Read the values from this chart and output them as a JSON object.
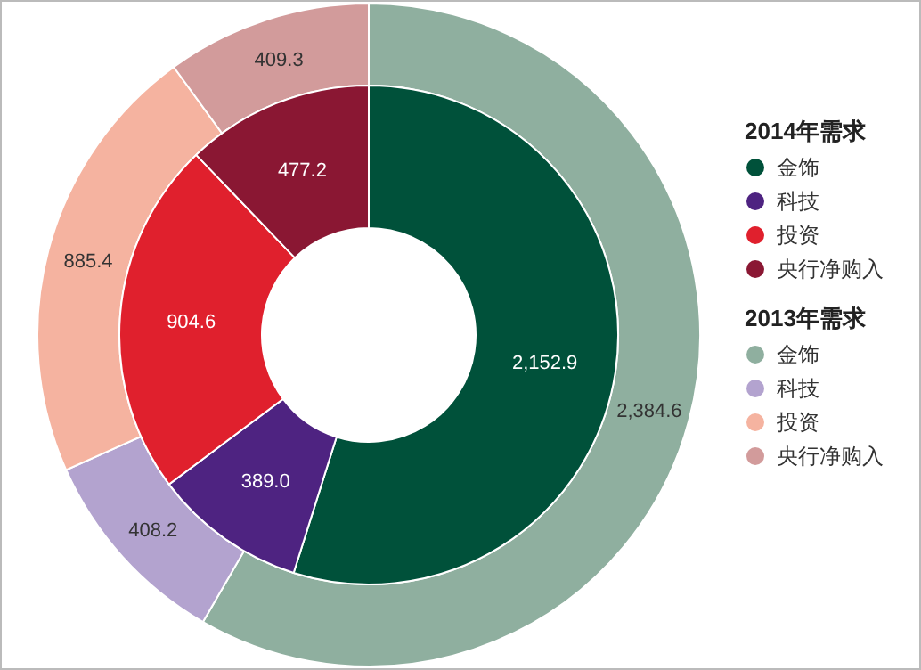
{
  "chart_data": [
    {
      "type": "donut",
      "legend_title": "2014年需求",
      "legend": "right",
      "categories": [
        "金饰",
        "科技",
        "投资",
        "央行净购入"
      ],
      "values": [
        2152.9,
        389.0,
        904.6,
        477.2
      ],
      "value_labels": [
        "2,152.9",
        "389.0",
        "904.6",
        "477.2"
      ],
      "colors": [
        "#00513a",
        "#4e2381",
        "#e0202d",
        "#8a1733"
      ]
    },
    {
      "type": "donut",
      "legend_title": "2013年需求",
      "legend": "right",
      "categories": [
        "金饰",
        "科技",
        "投资",
        "央行净购入"
      ],
      "values": [
        2384.6,
        408.2,
        885.4,
        409.3
      ],
      "value_labels": [
        "2,384.6",
        "408.2",
        "885.4",
        "409.3"
      ],
      "colors": [
        "#8faf9f",
        "#b3a3cf",
        "#f5b3a0",
        "#d29b9b"
      ]
    }
  ]
}
